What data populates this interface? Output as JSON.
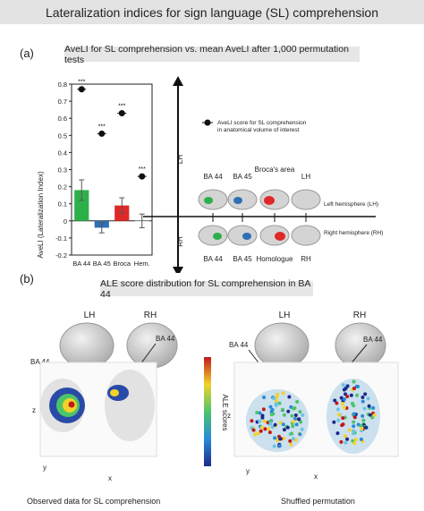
{
  "header": {
    "title": "Lateralization indices for sign language (SL) comprehension"
  },
  "panel_a": {
    "letter": "(a)",
    "subtitle": "AveLI for SL comprehension vs. mean AveLI after 1,000 permutation tests",
    "legend_text": [
      "AveLI score for SL comprehension",
      "in anatomical volume of interest"
    ],
    "lh_arrow_label": "LH",
    "rh_arrow_label": "RH",
    "brain_top_labels": [
      "BA 44",
      "BA 45",
      "Broca's area",
      "LH"
    ],
    "brain_bottom_labels": [
      "BA 44",
      "BA 45",
      "Homologue",
      "RH"
    ],
    "left_hemisphere_label": "Left hemisphere (LH)",
    "right_hemisphere_label": "Right hemisphere (RH)"
  },
  "chart_data": {
    "type": "bar",
    "ylabel": "AveLI (Lateralization Index)",
    "categories": [
      "BA 44",
      "BA 45",
      "Broca",
      "Hem."
    ],
    "ylim": [
      -0.2,
      0.8
    ],
    "yticks": [
      "0.8",
      "0.7",
      "0.6",
      "0.5",
      "0.4",
      "0.3",
      "0.2",
      "0.1",
      "0",
      "-0.1",
      "-0.2"
    ],
    "series": [
      {
        "values": [
          0.18,
          -0.04,
          0.09,
          0.0
        ],
        "errors": [
          0.06,
          0.03,
          0.045,
          0.04
        ]
      }
    ],
    "points": {
      "values": [
        0.77,
        0.51,
        0.63,
        0.26
      ],
      "annotation": "***"
    },
    "bar_colors": [
      "#2db04a",
      "#2f6fb6",
      "#e02828",
      "#ffffff"
    ],
    "error_bar_color": "#555555"
  },
  "panel_b": {
    "letter": "(b)",
    "subtitle": "ALE score distribution for SL comprehension in BA 44",
    "observed": {
      "lh": "LH",
      "rh": "RH",
      "label_lh": "BA 44",
      "label_rh": "BA 44",
      "caption": "Observed data for SL comprehension"
    },
    "shuffled": {
      "lh": "LH",
      "rh": "RH",
      "label_lh": "BA 44",
      "label_rh": "BA 44",
      "caption": "Shuffled permutation"
    },
    "colorbar_label": "ALE scores",
    "axis_z": "z",
    "axis_x": "x",
    "axis_y": "y"
  }
}
